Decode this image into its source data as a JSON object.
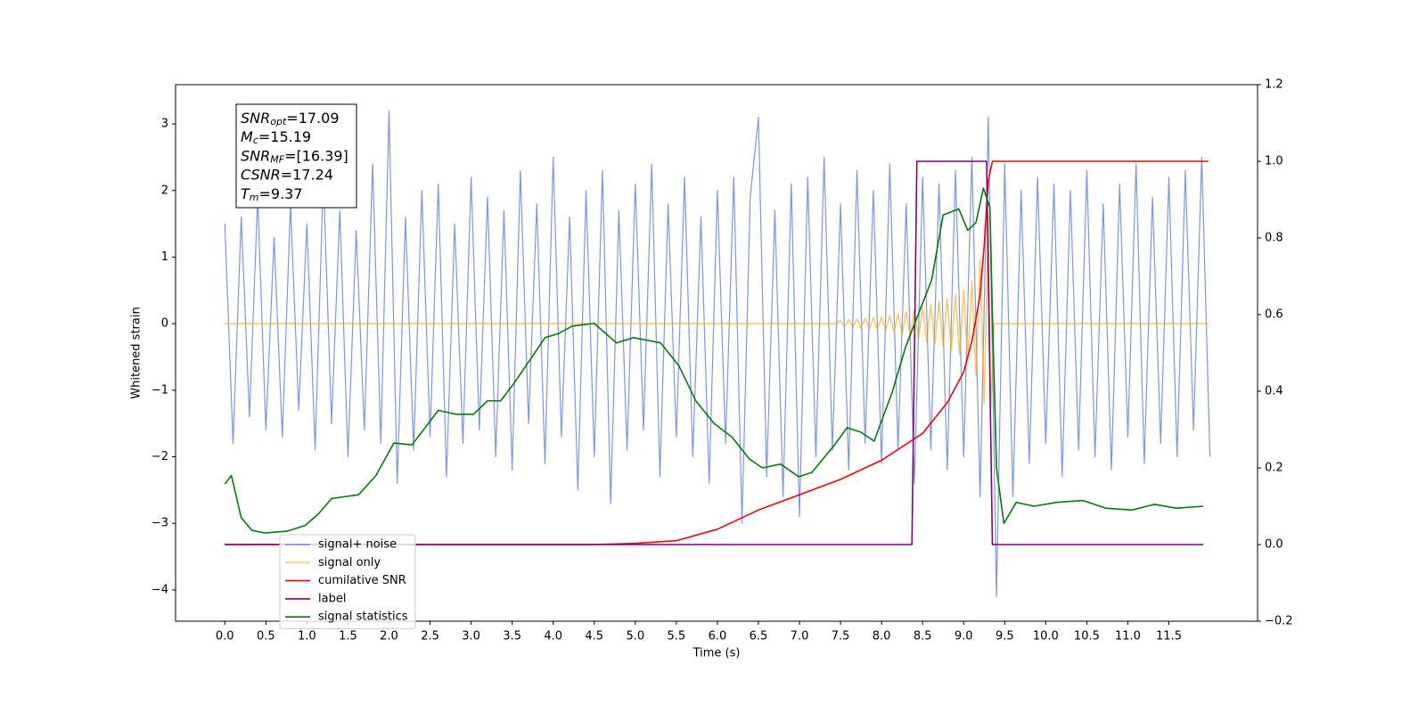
{
  "chart_data": {
    "type": "line",
    "x_label": "Time (s)",
    "y_label": "Whitened strain",
    "xlim": [
      -0.6,
      12.58
    ],
    "ylim": [
      -4.47,
      3.59
    ],
    "y2lim": [
      -0.2,
      1.2
    ],
    "xticks": [
      {
        "value": 0,
        "label": "0.0"
      },
      0.5,
      {
        "value": 1,
        "label": "1.0"
      },
      1.5,
      {
        "value": 2,
        "label": "2.0"
      },
      2.5,
      {
        "value": 3,
        "label": "3.0"
      },
      3.5,
      {
        "value": 4,
        "label": "4.0"
      },
      4.5,
      {
        "value": 5,
        "label": "5.0"
      },
      5.5,
      {
        "value": 6,
        "label": "6.0"
      },
      6.5,
      {
        "value": 7,
        "label": "7.0"
      },
      7.5,
      {
        "value": 8,
        "label": "8.0"
      },
      8.5,
      {
        "value": 9,
        "label": "9.0"
      },
      9.5,
      {
        "value": 10,
        "label": "10.0"
      },
      10.5,
      {
        "value": 11,
        "label": "11.0"
      },
      11.5
    ],
    "yticks": [
      {
        "value": -4,
        "label": "−4"
      },
      {
        "value": -3,
        "label": "−3"
      },
      {
        "value": -2,
        "label": "−2"
      },
      {
        "value": -1,
        "label": "−1"
      },
      0,
      1,
      2,
      3
    ],
    "y2ticks": [
      {
        "value": -0.2,
        "label": "−0.2"
      },
      {
        "value": 0,
        "label": "0.0"
      },
      0.2,
      0.4,
      0.6,
      0.8,
      {
        "value": 1,
        "label": "1.0"
      },
      1.2
    ],
    "legend": "lower left",
    "annotation": [
      {
        "main": "SNR",
        "sub": "opt",
        "rest": "=17.09"
      },
      {
        "main": "M",
        "sub": "c",
        "rest": "=15.19"
      },
      {
        "main": "SNR",
        "sub": "MF",
        "rest": "=[16.39]"
      },
      {
        "main": "CSNR",
        "rest": "=17.24"
      },
      {
        "main": "T",
        "sub": "m",
        "rest": "=9.37"
      }
    ],
    "series": [
      {
        "name": "signal+ noise",
        "color": "#4169e1",
        "alpha": 0.7,
        "x": [
          0,
          0.1,
          0.2,
          0.3,
          0.4,
          0.5,
          0.6,
          0.7,
          0.8,
          0.9,
          1,
          1.1,
          1.2,
          1.3,
          1.4,
          1.5,
          1.6,
          1.7,
          1.8,
          1.9,
          2,
          2.1,
          2.2,
          2.3,
          2.4,
          2.5,
          2.6,
          2.7,
          2.8,
          2.9,
          3,
          3.1,
          3.2,
          3.3,
          3.4,
          3.5,
          3.6,
          3.7,
          3.8,
          3.9,
          4,
          4.1,
          4.2,
          4.3,
          4.4,
          4.5,
          4.6,
          4.7,
          4.8,
          4.9,
          5,
          5.1,
          5.2,
          5.3,
          5.4,
          5.5,
          5.6,
          5.7,
          5.8,
          5.9,
          6,
          6.1,
          6.2,
          6.3,
          6.4,
          6.5,
          6.6,
          6.7,
          6.8,
          6.9,
          7,
          7.1,
          7.2,
          7.3,
          7.4,
          7.5,
          7.6,
          7.7,
          7.8,
          7.9,
          8,
          8.1,
          8.2,
          8.3,
          8.4,
          8.5,
          8.6,
          8.7,
          8.8,
          8.9,
          9,
          9.1,
          9.2,
          9.3,
          9.4,
          9.5,
          9.6,
          9.7,
          9.8,
          9.9,
          10,
          10.1,
          10.2,
          10.3,
          10.4,
          10.5,
          10.6,
          10.7,
          10.8,
          10.9,
          11,
          11.1,
          11.2,
          11.3,
          11.4,
          11.5,
          11.6,
          11.7,
          11.8,
          11.9,
          12
        ],
        "values": [
          1.5,
          -1.8,
          1.6,
          -1.4,
          1.9,
          -1.6,
          1.3,
          -1.7,
          1.8,
          -1.3,
          1.5,
          -1.9,
          2.2,
          -1.5,
          1.7,
          -2.0,
          1.4,
          -1.6,
          2.4,
          -1.8,
          3.2,
          -2.4,
          1.6,
          -1.9,
          2.0,
          -1.7,
          2.1,
          -2.3,
          1.5,
          -1.8,
          2.2,
          -1.6,
          1.9,
          -2.0,
          1.7,
          -2.2,
          2.3,
          -1.5,
          1.8,
          -2.1,
          2.5,
          -1.7,
          1.6,
          -2.5,
          2.0,
          -2.0,
          2.3,
          -2.7,
          1.7,
          -1.9,
          2.1,
          -1.6,
          2.4,
          -2.3,
          1.8,
          -1.7,
          2.2,
          -2.0,
          1.6,
          -2.4,
          2.0,
          -1.8,
          2.2,
          -3.0,
          1.9,
          3.1,
          -2.3,
          1.7,
          -2.6,
          2.1,
          -2.9,
          2.2,
          -2.0,
          2.5,
          -1.9,
          1.8,
          -2.2,
          2.3,
          -1.8,
          2.0,
          -2.1,
          2.4,
          -1.9,
          1.8,
          -2.4,
          2.2,
          -1.9,
          2.1,
          -2.2,
          2.3,
          -2.0,
          2.5,
          -2.6,
          3.1,
          -4.1,
          2.4,
          -2.6,
          2.0,
          -2.1,
          2.2,
          -1.8,
          2.1,
          -2.3,
          2.0,
          -1.9,
          2.3,
          -2.0,
          1.8,
          -2.2,
          2.1,
          -1.7,
          2.4,
          -2.1,
          1.9,
          -1.8,
          2.2,
          -2.0,
          2.3,
          -1.6,
          2.5,
          -2.0
        ]
      },
      {
        "name": "signal only",
        "color": "#ffa500",
        "alpha": 0.6,
        "x": [
          0,
          7.45,
          7.5,
          7.55,
          7.6,
          7.65,
          7.7,
          7.75,
          7.8,
          7.85,
          7.9,
          7.95,
          8,
          8.05,
          8.1,
          8.15,
          8.2,
          8.25,
          8.3,
          8.35,
          8.4,
          8.45,
          8.5,
          8.55,
          8.6,
          8.65,
          8.7,
          8.75,
          8.8,
          8.85,
          8.9,
          8.95,
          9,
          9.05,
          9.1,
          9.15,
          9.2,
          9.25,
          9.3,
          9.33,
          9.37,
          11.98
        ],
        "values": [
          0,
          0,
          0.05,
          -0.05,
          0.06,
          -0.06,
          0.07,
          -0.07,
          0.08,
          -0.08,
          0.09,
          -0.09,
          0.1,
          -0.11,
          0.12,
          -0.13,
          0.15,
          -0.16,
          0.18,
          -0.2,
          0.21,
          -0.23,
          0.25,
          -0.27,
          0.29,
          -0.31,
          0.33,
          -0.35,
          0.38,
          -0.41,
          0.44,
          -0.47,
          0.5,
          -0.57,
          0.65,
          -0.78,
          0.95,
          -1.2,
          1.6,
          -1.3,
          0,
          0
        ]
      },
      {
        "name": "cumilative SNR",
        "color": "#ff0000",
        "alpha": 1,
        "axis": "y2",
        "x": [
          0,
          4.5,
          5.0,
          5.5,
          6.0,
          6.5,
          7.0,
          7.5,
          8.0,
          8.5,
          8.8,
          9.0,
          9.1,
          9.2,
          9.25,
          9.3,
          9.35,
          11.98
        ],
        "values": [
          0,
          0,
          0.003,
          0.01,
          0.04,
          0.09,
          0.13,
          0.17,
          0.22,
          0.29,
          0.37,
          0.45,
          0.53,
          0.65,
          0.78,
          0.95,
          1,
          1
        ]
      },
      {
        "name": "label",
        "color": "#800080",
        "alpha": 1,
        "axis": "y2",
        "x": [
          0,
          8.37,
          8.43,
          9.28,
          9.35,
          11.92
        ],
        "values": [
          0,
          0,
          1,
          1,
          0,
          0
        ]
      },
      {
        "name": "signal statistics",
        "color": "#008000",
        "alpha": 1,
        "axis": "y2",
        "x": [
          0,
          0.08,
          0.2,
          0.33,
          0.49,
          0.76,
          0.98,
          1.14,
          1.3,
          1.63,
          1.84,
          2.06,
          2.28,
          2.6,
          2.82,
          3.03,
          3.2,
          3.36,
          3.52,
          3.68,
          3.9,
          4.06,
          4.23,
          4.5,
          4.77,
          4.98,
          5.31,
          5.53,
          5.74,
          5.96,
          6.18,
          6.39,
          6.55,
          6.77,
          6.99,
          7.15,
          7.42,
          7.58,
          7.75,
          7.91,
          8.13,
          8.29,
          8.5,
          8.61,
          8.75,
          8.94,
          9.05,
          9.15,
          9.24,
          9.32,
          9.35,
          9.4,
          9.49,
          9.64,
          9.86,
          10.13,
          10.45,
          10.73,
          11.05,
          11.32,
          11.59,
          11.92
        ],
        "values": [
          0.158,
          0.18,
          0.07,
          0.037,
          0.03,
          0.035,
          0.05,
          0.08,
          0.12,
          0.13,
          0.18,
          0.265,
          0.26,
          0.35,
          0.34,
          0.34,
          0.375,
          0.375,
          0.42,
          0.47,
          0.54,
          0.55,
          0.57,
          0.577,
          0.526,
          0.54,
          0.526,
          0.467,
          0.374,
          0.316,
          0.28,
          0.223,
          0.2,
          0.21,
          0.177,
          0.188,
          0.258,
          0.305,
          0.293,
          0.27,
          0.398,
          0.514,
          0.63,
          0.69,
          0.86,
          0.876,
          0.82,
          0.84,
          0.93,
          0.88,
          0.6,
          0.2,
          0.055,
          0.11,
          0.1,
          0.11,
          0.115,
          0.095,
          0.09,
          0.105,
          0.095,
          0.1
        ]
      }
    ]
  }
}
